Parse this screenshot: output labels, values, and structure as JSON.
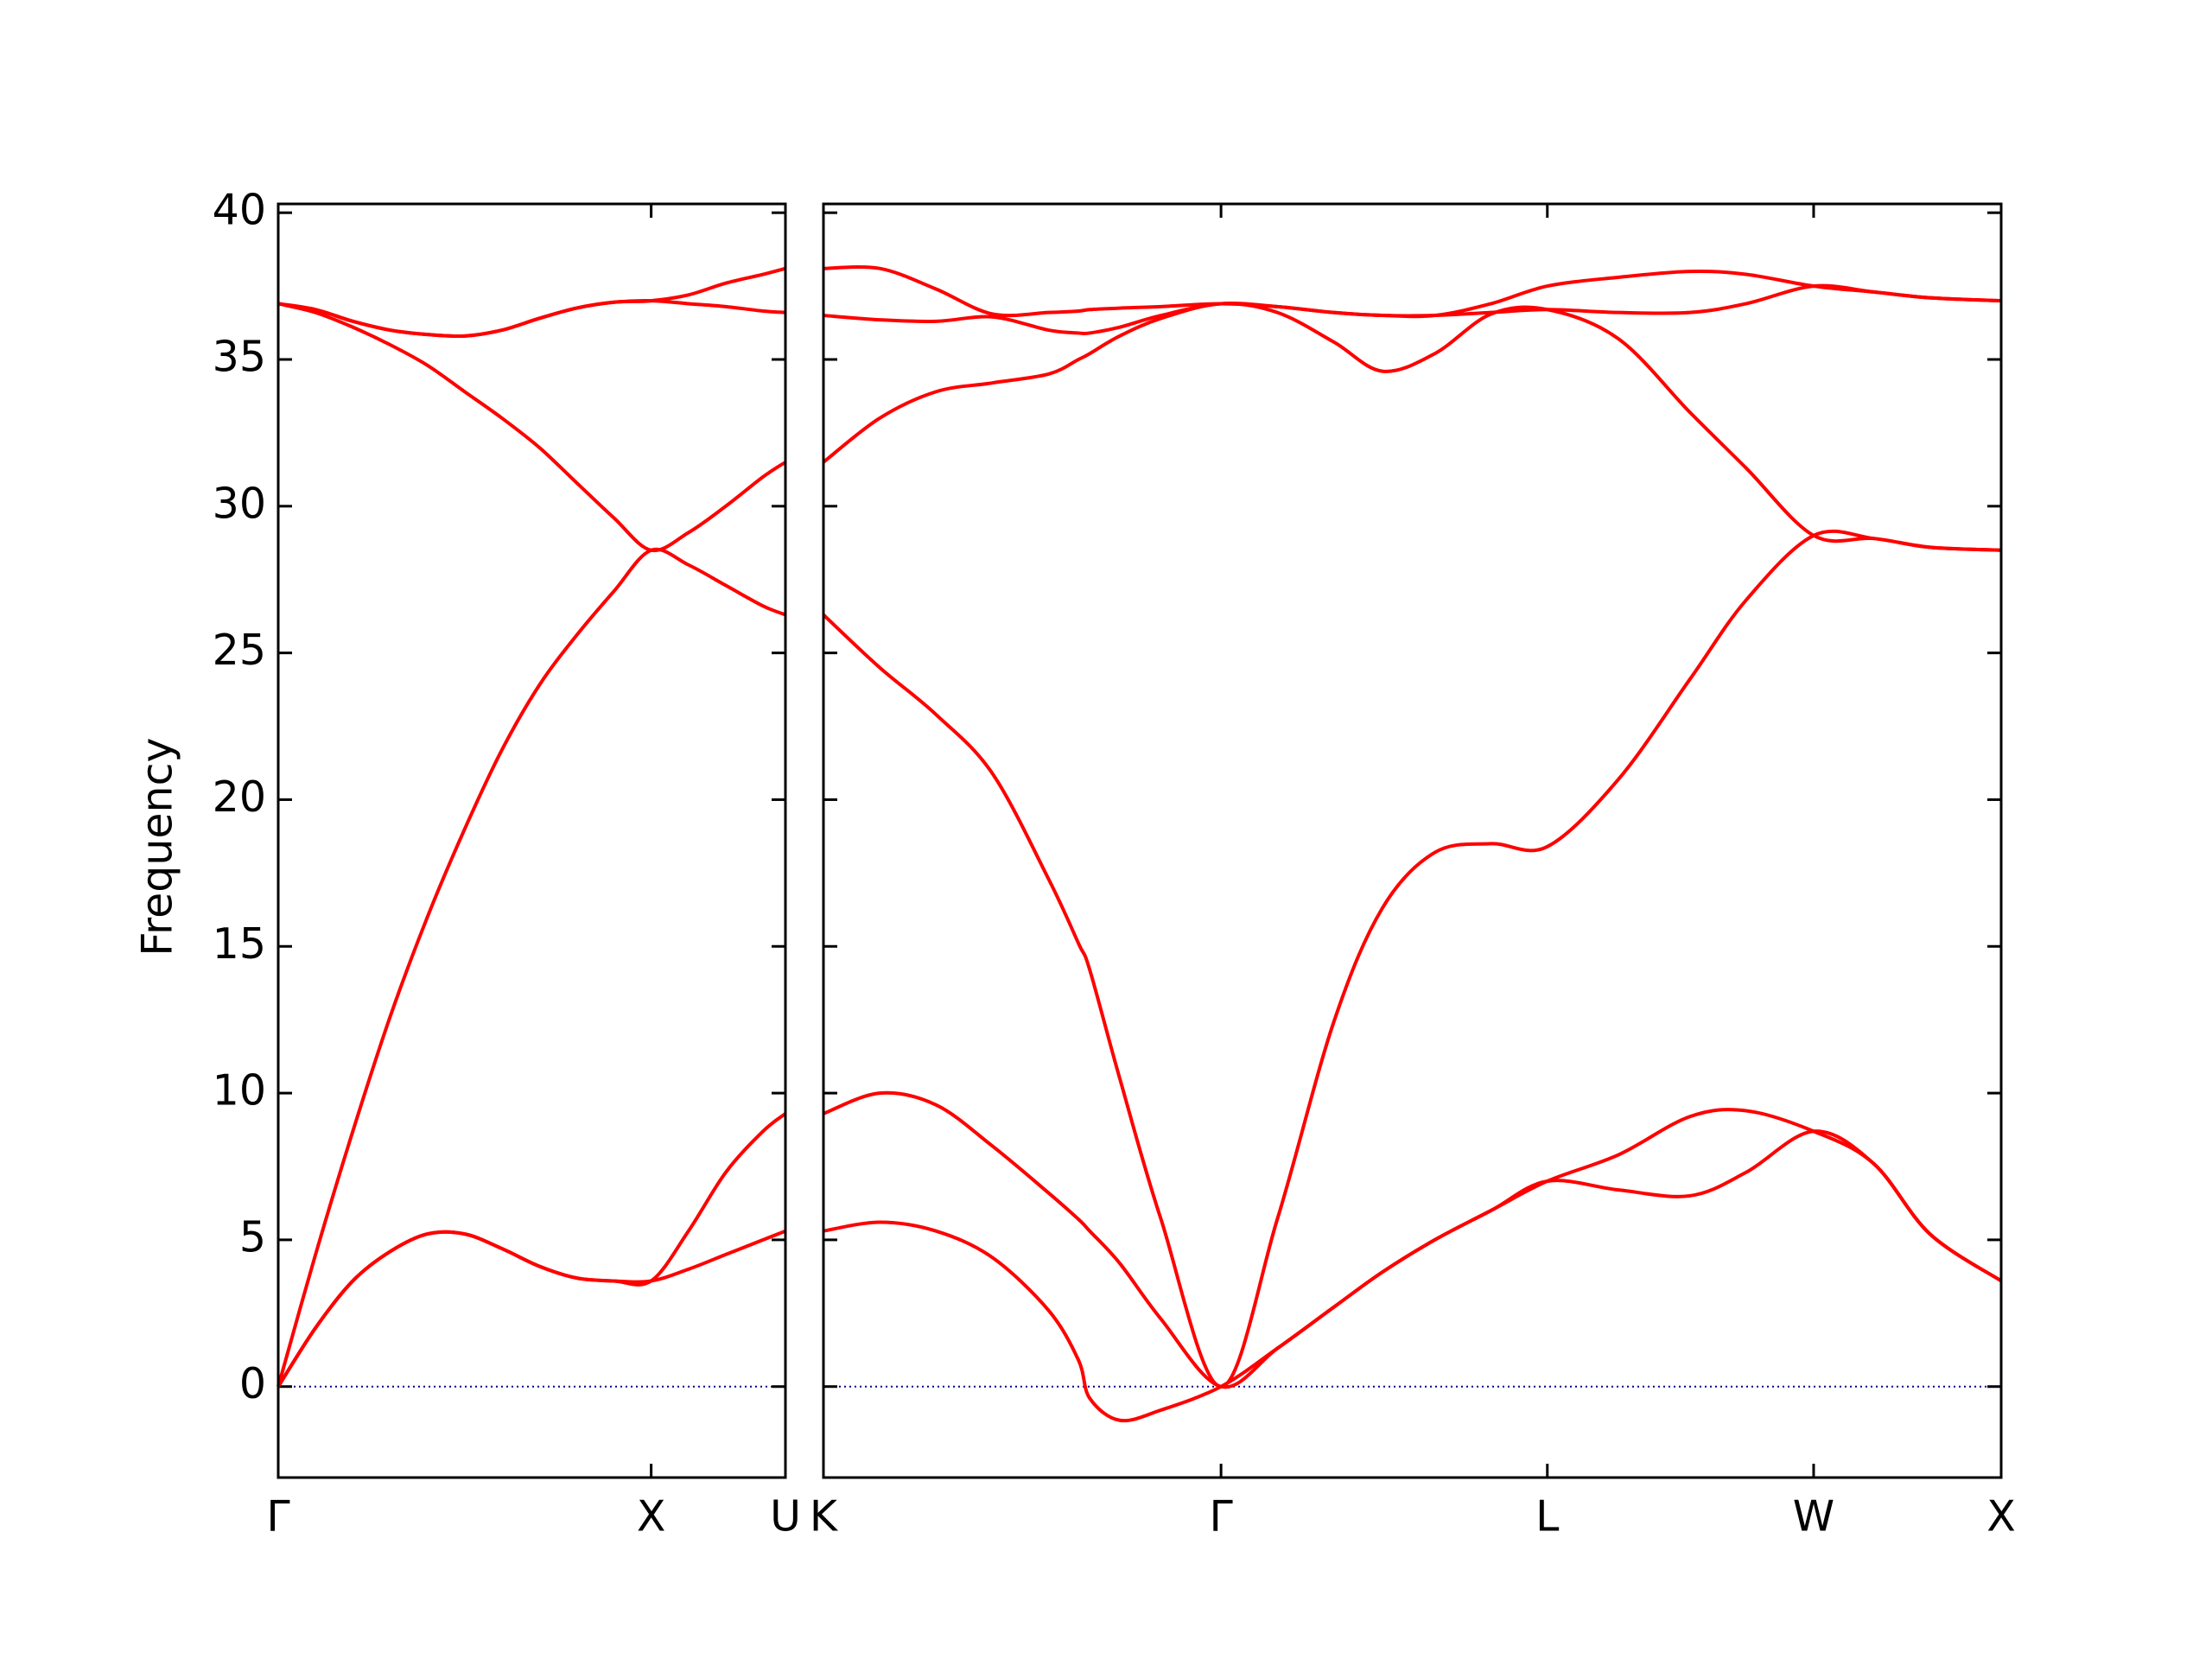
{
  "chart_data": [
    {
      "type": "line",
      "ylabel": "Frequency",
      "x": [
        0,
        0.1,
        0.2,
        0.3,
        0.4,
        0.5,
        0.6,
        0.7,
        0.8,
        0.9,
        1.0,
        1.1,
        1.2,
        1.3,
        1.36
      ],
      "series": [
        {
          "color": "#ff0000",
          "values": [
            0,
            2.0,
            3.6,
            4.6,
            5.2,
            5.2,
            4.7,
            4.1,
            3.7,
            3.6,
            3.6,
            4.0,
            4.5,
            5.0,
            5.3
          ]
        },
        {
          "color": "#ff0000",
          "values": [
            0,
            2.0,
            3.6,
            4.6,
            5.2,
            5.2,
            4.7,
            4.1,
            3.7,
            3.6,
            3.6,
            5.3,
            7.3,
            8.7,
            9.3
          ]
        },
        {
          "color": "#ff0000",
          "values": [
            0,
            4.5,
            8.7,
            12.6,
            16.0,
            19.0,
            21.7,
            23.9,
            25.6,
            27.1,
            28.5,
            28.0,
            27.3,
            26.6,
            26.3
          ]
        },
        {
          "color": "#ff0000",
          "values": [
            36.9,
            36.6,
            36.1,
            35.5,
            34.8,
            33.9,
            33.0,
            32.0,
            30.8,
            29.6,
            28.5,
            29.1,
            30.0,
            31.0,
            31.5
          ]
        },
        {
          "color": "#ff0000",
          "values": [
            36.9,
            36.7,
            36.3,
            36.0,
            35.85,
            35.8,
            36.0,
            36.4,
            36.75,
            36.95,
            37.0,
            36.9,
            36.8,
            36.65,
            36.6
          ]
        },
        {
          "color": "#ff0000",
          "values": [
            36.9,
            36.7,
            36.3,
            36.0,
            35.85,
            35.8,
            36.0,
            36.4,
            36.75,
            36.95,
            37.0,
            37.2,
            37.6,
            37.9,
            38.1
          ]
        }
      ],
      "xlim": [
        0,
        1.36
      ],
      "xticks": [
        {
          "value": 0,
          "label": "Γ"
        },
        {
          "value": 1.0,
          "label": "X"
        },
        {
          "value": 1.36,
          "label": "U"
        }
      ],
      "ylim": [
        -3.1,
        40.3
      ],
      "yticks": [
        0,
        5,
        10,
        15,
        20,
        25,
        30,
        35,
        40
      ],
      "hline": {
        "value": 0,
        "color": "#00008b"
      }
    },
    {
      "type": "line",
      "x": [
        0,
        0.15,
        0.3,
        0.45,
        0.6,
        0.68,
        0.71,
        0.79,
        0.9,
        1.06,
        1.21,
        1.36,
        1.49,
        1.63,
        1.78,
        1.93,
        2.12,
        2.31,
        2.46,
        2.64,
        2.8,
        2.95,
        3.14
      ],
      "series": [
        {
          "color": "#ff0000",
          "values": [
            5.3,
            5.6,
            5.3,
            4.4,
            2.6,
            0.9,
            -0.4,
            -1.15,
            -0.8,
            0,
            1.3,
            2.7,
            3.9,
            5.0,
            6.0,
            7.0,
            6.7,
            6.5,
            7.3,
            8.7,
            7.6,
            5.2,
            3.6
          ]
        },
        {
          "color": "#ff0000",
          "values": [
            9.3,
            10.0,
            9.6,
            8.2,
            6.6,
            5.7,
            5.3,
            4.2,
            2.3,
            0,
            1.3,
            2.7,
            3.9,
            5.0,
            6.0,
            7.0,
            7.9,
            9.2,
            9.4,
            8.7,
            7.6,
            5.2,
            3.6
          ]
        },
        {
          "color": "#ff0000",
          "values": [
            26.3,
            24.5,
            22.9,
            20.9,
            17.3,
            15.1,
            14.2,
            10.5,
            5.7,
            0,
            5.7,
            12.4,
            16.3,
            18.2,
            18.5,
            18.4,
            20.7,
            24.1,
            26.8,
            29.0,
            28.9,
            28.6,
            28.5
          ]
        },
        {
          "color": "#ff0000",
          "values": [
            31.5,
            33.0,
            33.9,
            34.2,
            34.5,
            35.0,
            35.2,
            35.8,
            36.4,
            36.9,
            36.6,
            35.6,
            34.6,
            35.2,
            36.55,
            36.7,
            35.7,
            33.2,
            31.3,
            29.0,
            28.9,
            28.6,
            28.5
          ]
        },
        {
          "color": "#ff0000",
          "values": [
            36.5,
            36.35,
            36.3,
            36.45,
            36.0,
            35.9,
            35.9,
            36.1,
            36.5,
            36.9,
            36.8,
            36.6,
            36.5,
            36.5,
            36.6,
            36.7,
            36.6,
            36.6,
            36.9,
            37.5,
            37.3,
            37.1,
            37.0
          ]
        },
        {
          "color": "#ff0000",
          "values": [
            38.1,
            38.1,
            37.4,
            36.55,
            36.6,
            36.65,
            36.7,
            36.75,
            36.8,
            36.9,
            36.8,
            36.6,
            36.5,
            36.5,
            36.9,
            37.5,
            37.8,
            38.0,
            37.9,
            37.5,
            37.3,
            37.1,
            37.0
          ]
        }
      ],
      "xlim": [
        0,
        3.14
      ],
      "xticks": [
        {
          "value": 0,
          "label": "K"
        },
        {
          "value": 1.06,
          "label": "Γ"
        },
        {
          "value": 1.93,
          "label": "L"
        },
        {
          "value": 2.64,
          "label": "W"
        },
        {
          "value": 3.14,
          "label": "X"
        }
      ],
      "ylim": [
        -3.1,
        40.3
      ],
      "hline": {
        "value": 0,
        "color": "#00008b"
      }
    }
  ]
}
